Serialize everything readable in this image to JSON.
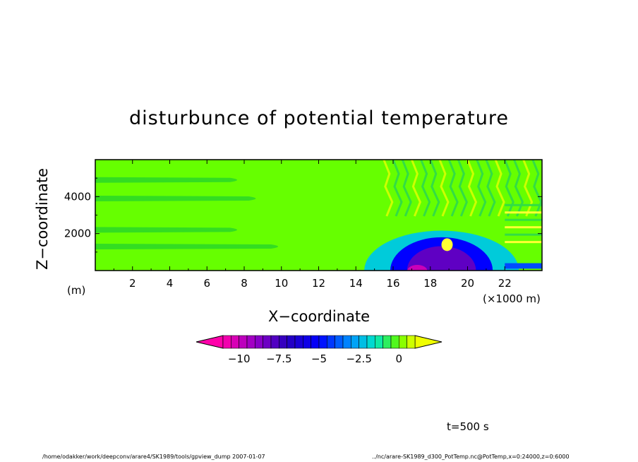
{
  "chart_data": {
    "type": "heatmap",
    "title": "disturbunce of potential temperature",
    "xlabel": "X−coordinate",
    "ylabel": "Z−coordinate",
    "x_unit": "(×1000 m)",
    "y_unit": "(m)",
    "xlim": [
      0,
      24
    ],
    "ylim": [
      0,
      6000
    ],
    "x_ticks": [
      "2",
      "4",
      "6",
      "8",
      "10",
      "12",
      "14",
      "16",
      "18",
      "20",
      "22"
    ],
    "x_tick_values": [
      2,
      4,
      6,
      8,
      10,
      12,
      14,
      16,
      18,
      20,
      22
    ],
    "y_ticks": [
      "2000",
      "4000"
    ],
    "y_tick_values": [
      2000,
      4000
    ],
    "colorbar": {
      "range": [
        -11,
        1
      ],
      "ticks": [
        "−10",
        "−7.5",
        "−5",
        "−2.5",
        "0"
      ],
      "tick_values": [
        -10,
        -7.5,
        -5,
        -2.5,
        0
      ],
      "levels": [
        -11,
        -10.5,
        -10,
        -9.5,
        -9,
        -8.5,
        -8,
        -7.5,
        -7,
        -6.5,
        -6,
        -5.5,
        -5,
        -4.5,
        -4,
        -3.5,
        -3,
        -2.5,
        -2,
        -1.5,
        -1,
        -0.5,
        0,
        0.5,
        1
      ],
      "extend": "both"
    },
    "features": {
      "background_value": 0,
      "cold_pool": {
        "x_range": [
          15.5,
          24
        ],
        "z_range": [
          0,
          1900
        ],
        "min_value": -10
      },
      "stripes_left": [
        {
          "z": 1300,
          "x_end": 10.2
        },
        {
          "z": 2200,
          "x_end": 8
        },
        {
          "z": 3900,
          "x_end": 9
        },
        {
          "z": 4900,
          "x_end": 8
        }
      ]
    }
  },
  "annotations": {
    "time": "t=500 s",
    "footer_left": "/home/odakker/work/deepconv/arare4/SK1989/tools/gpview_dump  2007-01-07",
    "footer_right": "../nc/arare-SK1989_d300_PotTemp.nc@PotTemp,x=0:24000,z=0:6000"
  },
  "colors": {
    "background_field": "#66ff00",
    "stripe": "#33dd22"
  }
}
